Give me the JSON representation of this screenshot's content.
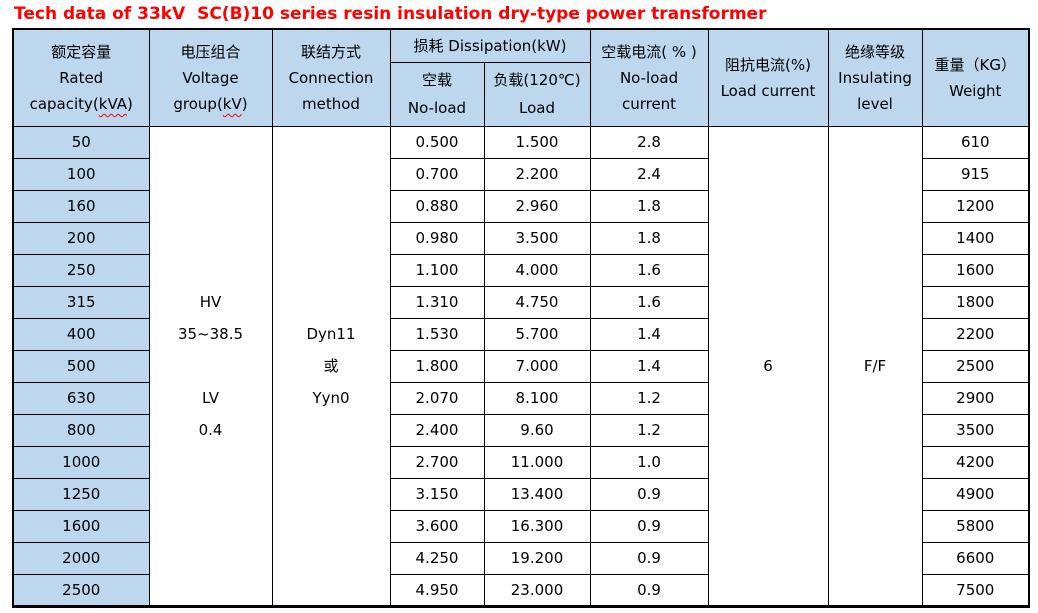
{
  "title": "Tech data of 33kV  SC(B)10 series resin insulation dry-type power transformer",
  "colors": {
    "header_bg": "#BDD7EE",
    "title_color": "#FF0000",
    "border_color": "#000000",
    "text_color": "#000000",
    "bg": "#FFFFFF",
    "squiggle": "#FF0000"
  },
  "table": {
    "header": {
      "capacity": {
        "zh": "额定容量",
        "en1": "Rated",
        "en2_pre": "capacity(",
        "en2_wavy": "kVA",
        "en2_suf": ")"
      },
      "voltage": {
        "zh": "电压组合",
        "en1": "Voltage",
        "en2_pre": "group(",
        "en2_wavy": "kV",
        "en2_suf": ")"
      },
      "connection": {
        "zh": "联结方式",
        "en1": "Connection",
        "en2": "method"
      },
      "dissipation": {
        "zh_en": "损耗 Dissipation(kW)"
      },
      "no_load_sub": {
        "zh": "空载",
        "en": "No-load"
      },
      "load_sub": {
        "zh": "负载(120℃)",
        "en": "Load"
      },
      "no_load_current": {
        "zh": "空载电流( % )",
        "en1": "No-load",
        "en2": "current"
      },
      "impedance": {
        "zh": "阻抗电流(%)",
        "en1": "Load current"
      },
      "insulating": {
        "zh": "绝缘等级",
        "en1": "Insulating",
        "en2": "level"
      },
      "weight": {
        "zh": "重量（KG）",
        "en1": "Weight"
      }
    },
    "merged": {
      "voltage_lines": [
        "HV",
        "35~38.5",
        "",
        "LV",
        "0.4"
      ],
      "connection_lines": [
        "Dyn11",
        "或",
        "Yyn0"
      ],
      "impedance_value": "6",
      "insulating_value": "F/F"
    },
    "rows": [
      {
        "capacity": "50",
        "no_load": "0.500",
        "load": "1.500",
        "no_load_current": "2.8",
        "weight": "610"
      },
      {
        "capacity": "100",
        "no_load": "0.700",
        "load": "2.200",
        "no_load_current": "2.4",
        "weight": "915"
      },
      {
        "capacity": "160",
        "no_load": "0.880",
        "load": "2.960",
        "no_load_current": "1.8",
        "weight": "1200"
      },
      {
        "capacity": "200",
        "no_load": "0.980",
        "load": "3.500",
        "no_load_current": "1.8",
        "weight": "1400"
      },
      {
        "capacity": "250",
        "no_load": "1.100",
        "load": "4.000",
        "no_load_current": "1.6",
        "weight": "1600"
      },
      {
        "capacity": "315",
        "no_load": "1.310",
        "load": "4.750",
        "no_load_current": "1.6",
        "weight": "1800"
      },
      {
        "capacity": "400",
        "no_load": "1.530",
        "load": "5.700",
        "no_load_current": "1.4",
        "weight": "2200"
      },
      {
        "capacity": "500",
        "no_load": "1.800",
        "load": "7.000",
        "no_load_current": "1.4",
        "weight": "2500"
      },
      {
        "capacity": "630",
        "no_load": "2.070",
        "load": "8.100",
        "no_load_current": "1.2",
        "weight": "2900"
      },
      {
        "capacity": "800",
        "no_load": "2.400",
        "load": "9.60",
        "no_load_current": "1.2",
        "weight": "3500"
      },
      {
        "capacity": "1000",
        "no_load": "2.700",
        "load": "11.000",
        "no_load_current": "1.0",
        "weight": "4200"
      },
      {
        "capacity": "1250",
        "no_load": "3.150",
        "load": "13.400",
        "no_load_current": "0.9",
        "weight": "4900"
      },
      {
        "capacity": "1600",
        "no_load": "3.600",
        "load": "16.300",
        "no_load_current": "0.9",
        "weight": "5800"
      },
      {
        "capacity": "2000",
        "no_load": "4.250",
        "load": "19.200",
        "no_load_current": "0.9",
        "weight": "6600"
      },
      {
        "capacity": "2500",
        "no_load": "4.950",
        "load": "23.000",
        "no_load_current": "0.9",
        "weight": "7500"
      }
    ]
  }
}
